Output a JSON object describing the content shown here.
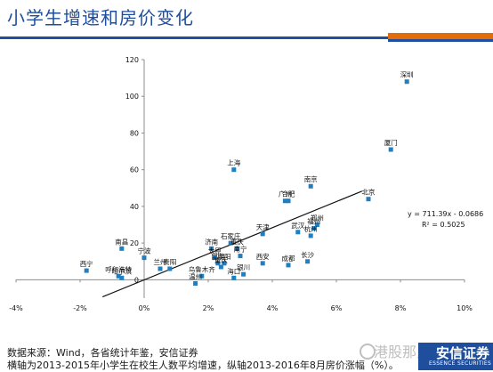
{
  "header": {
    "title": "小学生增速和房价变化"
  },
  "chart_data": {
    "type": "scatter",
    "xlim": [
      -0.04,
      0.1
    ],
    "ylim": [
      -10,
      120
    ],
    "x_ticks": [
      -0.04,
      -0.02,
      0,
      0.02,
      0.04,
      0.06,
      0.08,
      0.1
    ],
    "x_tick_labels": [
      "-4%",
      "-2%",
      "0%",
      "2%",
      "4%",
      "6%",
      "8%",
      "10%"
    ],
    "y_ticks": [
      0,
      20,
      40,
      60,
      80,
      100,
      120
    ],
    "y_tick_labels": [
      "0",
      "20",
      "40",
      "60",
      "80",
      "100",
      "120"
    ],
    "marker_color": "#1f7fc0",
    "trendline": {
      "slope": 711.39,
      "intercept": -0.0686,
      "x_range": [
        -0.013,
        0.068
      ]
    },
    "annotations": {
      "equation": "y = 711.39x - 0.0686",
      "r2": "R² = 0.5025"
    },
    "points": [
      {
        "label": "深圳",
        "x": 0.082,
        "y": 108
      },
      {
        "label": "厦门",
        "x": 0.077,
        "y": 71
      },
      {
        "label": "上海",
        "x": 0.028,
        "y": 60
      },
      {
        "label": "南京",
        "x": 0.052,
        "y": 51
      },
      {
        "label": "合肥",
        "x": 0.045,
        "y": 43
      },
      {
        "label": "广州",
        "x": 0.044,
        "y": 43
      },
      {
        "label": "北京",
        "x": 0.07,
        "y": 44
      },
      {
        "label": "郑州",
        "x": 0.054,
        "y": 30
      },
      {
        "label": "天津",
        "x": 0.037,
        "y": 25
      },
      {
        "label": "武汉",
        "x": 0.048,
        "y": 26
      },
      {
        "label": "福州",
        "x": 0.053,
        "y": 28
      },
      {
        "label": "杭州",
        "x": 0.052,
        "y": 24
      },
      {
        "label": "长沙",
        "x": 0.051,
        "y": 10
      },
      {
        "label": "成都",
        "x": 0.045,
        "y": 8
      },
      {
        "label": "西安",
        "x": 0.037,
        "y": 9
      },
      {
        "label": "石家庄",
        "x": 0.027,
        "y": 20
      },
      {
        "label": "重庆",
        "x": 0.029,
        "y": 17
      },
      {
        "label": "南宁",
        "x": 0.03,
        "y": 13
      },
      {
        "label": "济南",
        "x": 0.021,
        "y": 17
      },
      {
        "label": "太原",
        "x": 0.022,
        "y": 12
      },
      {
        "label": "沈阳",
        "x": 0.025,
        "y": 9
      },
      {
        "label": "昆明",
        "x": 0.023,
        "y": 9
      },
      {
        "label": "重庆",
        "x": 0.024,
        "y": 7
      },
      {
        "label": "乌鲁木齐",
        "x": 0.018,
        "y": 2
      },
      {
        "label": "银川",
        "x": 0.031,
        "y": 3
      },
      {
        "label": "海口",
        "x": 0.028,
        "y": 1
      },
      {
        "label": "温州",
        "x": 0.016,
        "y": -2
      },
      {
        "label": "贵阳",
        "x": 0.008,
        "y": 6
      },
      {
        "label": "兰州",
        "x": 0.005,
        "y": 6
      },
      {
        "label": "宁波",
        "x": 0.0,
        "y": 12
      },
      {
        "label": "南昌",
        "x": -0.007,
        "y": 17
      },
      {
        "label": "西宁",
        "x": -0.018,
        "y": 5
      },
      {
        "label": "呼和浩特",
        "x": -0.008,
        "y": 2
      },
      {
        "label": "哈尔滨",
        "x": -0.007,
        "y": 1
      }
    ]
  },
  "footer": {
    "source": "数据来源：Wind，各省统计年鉴，安信证券",
    "note": "横轴为2013-2015年小学生在校生人数平均增速，纵轴2013-2016年8月房价涨幅（%）。"
  },
  "logo": {
    "name": "安信证券",
    "english": "ESSENCE SECURITIES"
  },
  "watermark": {
    "text": "港股那点事"
  }
}
